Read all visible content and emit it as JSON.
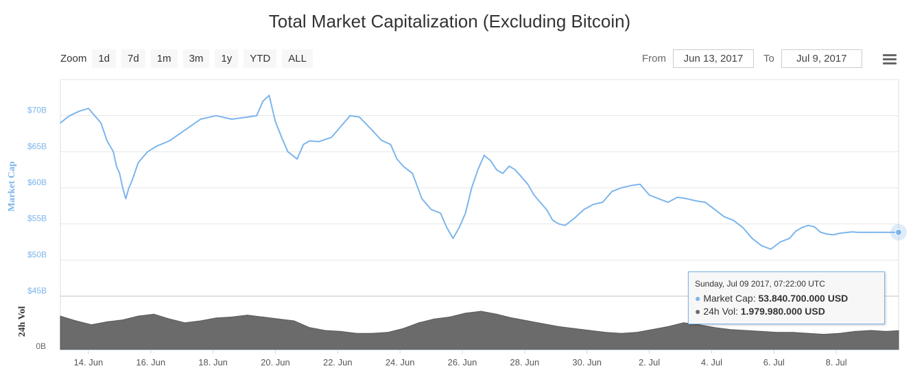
{
  "chart_data": {
    "type": "area",
    "title": "Total Market Capitalization (Excluding Bitcoin)",
    "zoom": {
      "label": "Zoom",
      "buttons": [
        "1d",
        "7d",
        "1m",
        "3m",
        "1y",
        "YTD",
        "ALL"
      ]
    },
    "range": {
      "from_label": "From",
      "from_value": "Jun 13, 2017",
      "to_label": "To",
      "to_value": "Jul 9, 2017"
    },
    "market_cap": {
      "name": "Market Cap",
      "ylabel": "Market Cap",
      "units": "billion USD",
      "ylim": [
        45,
        75
      ],
      "yticks": [
        45,
        50,
        55,
        60,
        65,
        70
      ],
      "ytick_labels": [
        "$45B",
        "$50B",
        "$55B",
        "$60B",
        "$65B",
        "$70B"
      ],
      "color": "#7cb5ec",
      "day_offsets": [
        0,
        0.3,
        0.6,
        0.9,
        1.1,
        1.3,
        1.5,
        1.7,
        1.8,
        1.9,
        2.0,
        2.1,
        2.2,
        2.3,
        2.5,
        2.8,
        3.1,
        3.5,
        4.0,
        4.5,
        5.0,
        5.5,
        6.0,
        6.3,
        6.5,
        6.7,
        6.9,
        7.1,
        7.3,
        7.6,
        7.8,
        8.0,
        8.3,
        8.7,
        9.0,
        9.3,
        9.6,
        10.0,
        10.3,
        10.6,
        10.8,
        11.0,
        11.3,
        11.6,
        11.9,
        12.2,
        12.4,
        12.6,
        12.8,
        13.0,
        13.2,
        13.4,
        13.6,
        13.8,
        14.0,
        14.2,
        14.4,
        14.6,
        14.8,
        15.0,
        15.2,
        15.4,
        15.6,
        15.8,
        16.0,
        16.2,
        16.5,
        16.8,
        17.1,
        17.4,
        17.7,
        18.0,
        18.3,
        18.6,
        18.9,
        19.2,
        19.5,
        19.8,
        20.1,
        20.4,
        20.7,
        21.0,
        21.3,
        21.6,
        21.9,
        22.2,
        22.5,
        22.8,
        23.1,
        23.4,
        23.6,
        23.8,
        24.0,
        24.2,
        24.4,
        24.6,
        24.8,
        25.0,
        25.2,
        25.4,
        25.6,
        25.8,
        26.0,
        26.2,
        26.4,
        26.6,
        26.8,
        26.9
      ],
      "values": [
        69,
        70,
        70.6,
        71,
        70,
        69,
        66.5,
        65,
        63,
        62,
        60,
        58.5,
        60,
        61,
        63.5,
        65,
        65.8,
        66.5,
        68,
        69.5,
        70,
        69.5,
        69.8,
        70,
        72,
        72.8,
        69.2,
        67,
        65,
        64,
        66,
        66.5,
        66.4,
        67,
        68.5,
        70,
        69.8,
        68,
        66.6,
        66,
        64,
        63,
        62,
        58.5,
        57,
        56.5,
        54.5,
        53,
        54.5,
        56.5,
        60,
        62.5,
        64.5,
        63.8,
        62.5,
        62,
        63,
        62.5,
        61.5,
        60.5,
        59,
        58,
        57,
        55.5,
        55,
        54.8,
        55.8,
        57,
        57.7,
        58,
        59.5,
        60,
        60.3,
        60.5,
        59,
        58.5,
        58,
        58.7,
        58.5,
        58.2,
        58,
        57,
        56,
        55.5,
        54.5,
        53,
        52,
        51.5,
        52.5,
        53,
        54,
        54.5,
        54.8,
        54.6,
        53.84,
        53.6,
        53.5,
        53.7,
        53.8,
        53.9,
        53.84,
        53.84,
        53.84,
        53.84,
        53.84,
        53.84,
        53.84,
        53.84
      ]
    },
    "volume": {
      "name": "24h Vol",
      "ylabel": "24h Vol",
      "units": "billion USD",
      "ylim": [
        0,
        5
      ],
      "ytick_labels": [
        "0B"
      ],
      "color": "#6b6b6b",
      "day_offsets": [
        0,
        0.5,
        1.0,
        1.5,
        2.0,
        2.5,
        3.0,
        3.5,
        4.0,
        4.5,
        5.0,
        5.5,
        6.0,
        6.5,
        7.0,
        7.5,
        8.0,
        8.5,
        9.0,
        9.5,
        10.0,
        10.5,
        11.0,
        11.5,
        12.0,
        12.5,
        13.0,
        13.5,
        14.0,
        14.5,
        15.0,
        15.5,
        16.0,
        16.5,
        17.0,
        17.5,
        18.0,
        18.5,
        19.0,
        19.5,
        20.0,
        20.5,
        21.0,
        21.5,
        22.0,
        22.5,
        23.0,
        23.5,
        24.0,
        24.5,
        25.0,
        25.5,
        26.0,
        26.5,
        26.9
      ],
      "values": [
        3.5,
        3.0,
        2.6,
        2.9,
        3.1,
        3.5,
        3.7,
        3.2,
        2.8,
        3.0,
        3.3,
        3.4,
        3.6,
        3.4,
        3.2,
        3.0,
        2.3,
        2.0,
        1.9,
        1.7,
        1.7,
        1.8,
        2.2,
        2.8,
        3.2,
        3.4,
        3.8,
        4.0,
        3.7,
        3.3,
        3.0,
        2.7,
        2.4,
        2.2,
        2.0,
        1.8,
        1.7,
        1.8,
        2.1,
        2.4,
        2.8,
        2.6,
        2.3,
        2.1,
        2.0,
        1.9,
        1.8,
        1.8,
        1.7,
        1.6,
        1.7,
        1.9,
        2.0,
        1.9,
        1.98
      ]
    },
    "x_ticks": [
      {
        "day": 0.9,
        "label": "14. Jun"
      },
      {
        "day": 2.9,
        "label": "16. Jun"
      },
      {
        "day": 4.9,
        "label": "18. Jun"
      },
      {
        "day": 6.9,
        "label": "20. Jun"
      },
      {
        "day": 8.9,
        "label": "22. Jun"
      },
      {
        "day": 10.9,
        "label": "24. Jun"
      },
      {
        "day": 12.9,
        "label": "26. Jun"
      },
      {
        "day": 14.9,
        "label": "28. Jun"
      },
      {
        "day": 16.9,
        "label": "30. Jun"
      },
      {
        "day": 18.9,
        "label": "2. Jul"
      },
      {
        "day": 20.9,
        "label": "4. Jul"
      },
      {
        "day": 22.9,
        "label": "6. Jul"
      },
      {
        "day": 24.9,
        "label": "8. Jul"
      }
    ],
    "tooltip": {
      "date": "Sunday, Jul 09 2017, 07:22:00 UTC",
      "market_cap_label": "Market Cap",
      "market_cap_value": "53.840.700.000 USD",
      "vol_label": "24h Vol",
      "vol_value": "1.979.980.000 USD"
    }
  }
}
